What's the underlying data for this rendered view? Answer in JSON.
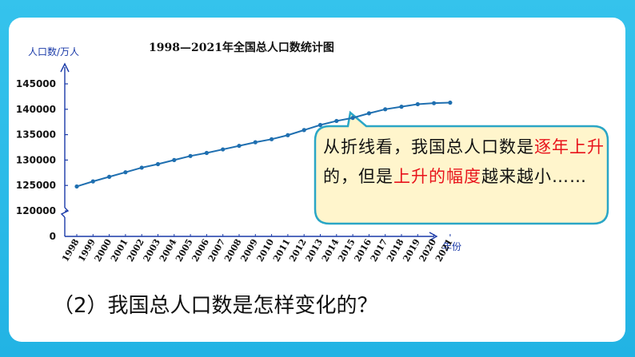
{
  "chart_data": {
    "type": "line",
    "title": "1998—2021年全国总人口数统计图",
    "ylabel": "人口数/万人",
    "xlabel": "年份",
    "categories": [
      "1998",
      "1999",
      "2000",
      "2001",
      "2002",
      "2003",
      "2004",
      "2005",
      "2006",
      "2007",
      "2008",
      "2009",
      "2010",
      "2011",
      "2012",
      "2013",
      "2014",
      "2015",
      "2016",
      "2017",
      "2018",
      "2019",
      "2020",
      "2021"
    ],
    "values": [
      124800,
      125800,
      126700,
      127600,
      128500,
      129200,
      130000,
      130800,
      131400,
      132100,
      132800,
      133500,
      134100,
      134900,
      135900,
      136900,
      137700,
      138300,
      139200,
      140000,
      140500,
      141000,
      141200,
      141300
    ],
    "yticks": [
      "145000",
      "140000",
      "135000",
      "130000",
      "125000",
      "120000",
      "0"
    ],
    "ylim": [
      120000,
      145000
    ],
    "axis_break": true,
    "color": "#1f6fb0"
  },
  "callout": {
    "segments": [
      {
        "text": "从折线看，我国总人口数是",
        "red": false
      },
      {
        "text": "逐年上升",
        "red": true
      },
      {
        "text": "的，但是",
        "red": false
      },
      {
        "text": "上升的幅度",
        "red": true
      },
      {
        "text": "越来越小……",
        "red": false
      }
    ],
    "colors": {
      "fill": "#fff5cc",
      "border": "#2aa6c6",
      "highlight": "#e8131b"
    }
  },
  "question": "（2）我国总人口数是怎样变化的？",
  "colors": {
    "frame": "#2bbbe8",
    "panel": "#ffffff"
  }
}
